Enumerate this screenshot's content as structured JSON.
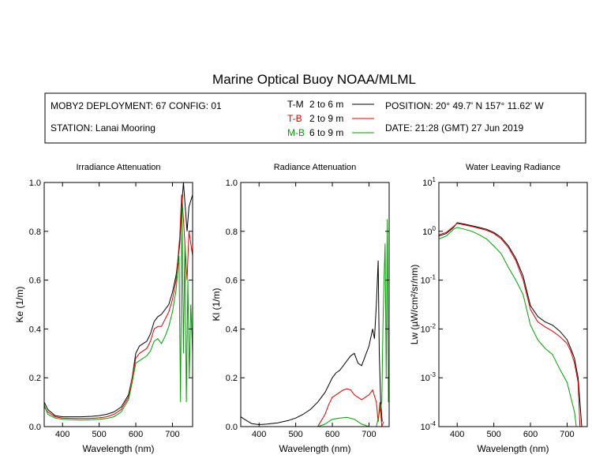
{
  "title": "Marine Optical Buoy NOAA/MLML",
  "info": {
    "deployment": "MOBY2 DEPLOYMENT: 67 CONFIG: 01",
    "station": "STATION: Lanai Mooring",
    "position": "POSITION: 20° 49.7' N   157° 11.62' W",
    "date": "DATE: 21:28 (GMT) 27 Jun 2019"
  },
  "legend": [
    {
      "code": "T-M",
      "range": "2 to 6  m",
      "color": "#000000"
    },
    {
      "code": "T-B",
      "range": "2 to 9  m",
      "color": "#dd0000"
    },
    {
      "code": "M-B",
      "range": "6 to 9  m",
      "color": "#00a000"
    }
  ],
  "chart_data": [
    {
      "type": "line",
      "title": "Irradiance Attenuation",
      "xlabel": "Wavelength (nm)",
      "ylabel": "Ke  (1/m)",
      "xlim": [
        350,
        755
      ],
      "ylim": [
        0,
        1.0
      ],
      "xticks": [
        "400",
        "500",
        "600",
        "700"
      ],
      "yticks": [
        "0.0",
        "0.2",
        "0.4",
        "0.6",
        "0.8",
        "1.0"
      ],
      "log": false,
      "series": [
        {
          "code": "T-M",
          "color": "#000000",
          "points": [
            [
              350,
              0.1
            ],
            [
              360,
              0.07
            ],
            [
              380,
              0.045
            ],
            [
              400,
              0.04
            ],
            [
              420,
              0.04
            ],
            [
              450,
              0.04
            ],
            [
              480,
              0.042
            ],
            [
              500,
              0.045
            ],
            [
              520,
              0.05
            ],
            [
              540,
              0.06
            ],
            [
              560,
              0.08
            ],
            [
              580,
              0.13
            ],
            [
              590,
              0.2
            ],
            [
              600,
              0.3
            ],
            [
              610,
              0.33
            ],
            [
              620,
              0.34
            ],
            [
              630,
              0.35
            ],
            [
              640,
              0.38
            ],
            [
              650,
              0.43
            ],
            [
              660,
              0.45
            ],
            [
              670,
              0.46
            ],
            [
              680,
              0.48
            ],
            [
              690,
              0.5
            ],
            [
              700,
              0.55
            ],
            [
              710,
              0.62
            ],
            [
              720,
              0.75
            ],
            [
              725,
              0.9
            ],
            [
              730,
              1.0
            ],
            [
              740,
              0.8
            ],
            [
              745,
              0.9
            ],
            [
              755,
              0.95
            ]
          ]
        },
        {
          "code": "T-B",
          "color": "#dd0000",
          "points": [
            [
              350,
              0.08
            ],
            [
              360,
              0.06
            ],
            [
              380,
              0.04
            ],
            [
              400,
              0.035
            ],
            [
              420,
              0.034
            ],
            [
              450,
              0.033
            ],
            [
              480,
              0.034
            ],
            [
              500,
              0.036
            ],
            [
              520,
              0.04
            ],
            [
              540,
              0.05
            ],
            [
              560,
              0.07
            ],
            [
              580,
              0.12
            ],
            [
              590,
              0.2
            ],
            [
              600,
              0.28
            ],
            [
              610,
              0.3
            ],
            [
              620,
              0.31
            ],
            [
              630,
              0.32
            ],
            [
              640,
              0.35
            ],
            [
              650,
              0.4
            ],
            [
              660,
              0.41
            ],
            [
              670,
              0.41
            ],
            [
              680,
              0.44
            ],
            [
              690,
              0.47
            ],
            [
              700,
              0.52
            ],
            [
              710,
              0.6
            ],
            [
              720,
              0.78
            ],
            [
              725,
              0.95
            ],
            [
              730,
              0.85
            ],
            [
              740,
              0.6
            ],
            [
              745,
              0.8
            ],
            [
              755,
              0.7
            ]
          ]
        },
        {
          "code": "M-B",
          "color": "#00a000",
          "points": [
            [
              350,
              0.09
            ],
            [
              360,
              0.05
            ],
            [
              380,
              0.035
            ],
            [
              400,
              0.03
            ],
            [
              420,
              0.028
            ],
            [
              450,
              0.027
            ],
            [
              480,
              0.028
            ],
            [
              500,
              0.03
            ],
            [
              520,
              0.033
            ],
            [
              540,
              0.04
            ],
            [
              560,
              0.06
            ],
            [
              580,
              0.11
            ],
            [
              590,
              0.18
            ],
            [
              600,
              0.26
            ],
            [
              610,
              0.27
            ],
            [
              620,
              0.28
            ],
            [
              630,
              0.29
            ],
            [
              640,
              0.31
            ],
            [
              650,
              0.35
            ],
            [
              660,
              0.36
            ],
            [
              670,
              0.34
            ],
            [
              680,
              0.37
            ],
            [
              690,
              0.41
            ],
            [
              700,
              0.47
            ],
            [
              710,
              0.56
            ],
            [
              718,
              0.7
            ],
            [
              722,
              0.1
            ],
            [
              726,
              0.9
            ],
            [
              730,
              0.3
            ],
            [
              734,
              0.75
            ],
            [
              738,
              0.1
            ],
            [
              742,
              0.6
            ],
            [
              746,
              0.2
            ],
            [
              750,
              0.5
            ],
            [
              755,
              0.3
            ]
          ]
        }
      ]
    },
    {
      "type": "line",
      "title": "Radiance Attenuation",
      "xlabel": "Wavelength (nm)",
      "ylabel": "Kl  (1/m)",
      "xlim": [
        350,
        755
      ],
      "ylim": [
        0,
        1.0
      ],
      "xticks": [
        "400",
        "500",
        "600",
        "700"
      ],
      "yticks": [
        "0.0",
        "0.2",
        "0.4",
        "0.6",
        "0.8",
        "1.0"
      ],
      "log": false,
      "series": [
        {
          "code": "T-M",
          "color": "#000000",
          "points": [
            [
              350,
              0.04
            ],
            [
              360,
              0.03
            ],
            [
              380,
              0.012
            ],
            [
              400,
              0.008
            ],
            [
              420,
              0.01
            ],
            [
              450,
              0.015
            ],
            [
              480,
              0.025
            ],
            [
              500,
              0.035
            ],
            [
              520,
              0.05
            ],
            [
              540,
              0.07
            ],
            [
              560,
              0.1
            ],
            [
              580,
              0.14
            ],
            [
              590,
              0.17
            ],
            [
              600,
              0.2
            ],
            [
              610,
              0.22
            ],
            [
              620,
              0.23
            ],
            [
              630,
              0.25
            ],
            [
              640,
              0.27
            ],
            [
              650,
              0.29
            ],
            [
              660,
              0.3
            ],
            [
              670,
              0.26
            ],
            [
              680,
              0.25
            ],
            [
              690,
              0.29
            ],
            [
              700,
              0.33
            ],
            [
              710,
              0.4
            ],
            [
              715,
              0.36
            ],
            [
              720,
              0.5
            ],
            [
              725,
              0.68
            ],
            [
              728,
              0.3
            ],
            [
              732,
              0.1
            ],
            [
              736,
              0.02
            ]
          ]
        },
        {
          "code": "T-B",
          "color": "#dd0000",
          "points": [
            [
              560,
              0.0
            ],
            [
              580,
              0.05
            ],
            [
              590,
              0.09
            ],
            [
              600,
              0.12
            ],
            [
              610,
              0.13
            ],
            [
              620,
              0.14
            ],
            [
              630,
              0.15
            ],
            [
              640,
              0.155
            ],
            [
              650,
              0.15
            ],
            [
              660,
              0.13
            ],
            [
              670,
              0.12
            ],
            [
              680,
              0.11
            ],
            [
              690,
              0.12
            ],
            [
              700,
              0.13
            ],
            [
              710,
              0.15
            ],
            [
              720,
              0.1
            ],
            [
              725,
              0.02
            ],
            [
              730,
              0.1
            ],
            [
              735,
              0.0
            ],
            [
              740,
              0.02
            ]
          ]
        },
        {
          "code": "M-B",
          "color": "#00a000",
          "points": [
            [
              560,
              0.0
            ],
            [
              580,
              0.01
            ],
            [
              600,
              0.03
            ],
            [
              620,
              0.035
            ],
            [
              640,
              0.038
            ],
            [
              660,
              0.03
            ],
            [
              680,
              0.01
            ],
            [
              700,
              0.0
            ],
            [
              720,
              0.0
            ],
            [
              735,
              0.1
            ],
            [
              738,
              0.4
            ],
            [
              741,
              0.6
            ],
            [
              744,
              0.75
            ],
            [
              747,
              0.2
            ],
            [
              750,
              0.85
            ],
            [
              753,
              0.1
            ]
          ]
        }
      ]
    },
    {
      "type": "line",
      "title": "Water Leaving Radiance",
      "xlabel": "Wavelength (nm)",
      "ylabel": "Lw  (µW/cm²/sr/nm)",
      "xlim": [
        350,
        755
      ],
      "ylim": [
        0.0001,
        10
      ],
      "xticks": [
        "400",
        "500",
        "600",
        "700"
      ],
      "yticks": [
        "10^-4",
        "10^-3",
        "10^-2",
        "10^-1",
        "10^0",
        "10^1"
      ],
      "log": true,
      "series": [
        {
          "code": "T-M",
          "color": "#000000",
          "points": [
            [
              350,
              0.8
            ],
            [
              370,
              0.9
            ],
            [
              390,
              1.2
            ],
            [
              400,
              1.5
            ],
            [
              420,
              1.4
            ],
            [
              440,
              1.3
            ],
            [
              460,
              1.2
            ],
            [
              480,
              1.1
            ],
            [
              500,
              0.95
            ],
            [
              520,
              0.75
            ],
            [
              540,
              0.5
            ],
            [
              560,
              0.28
            ],
            [
              580,
              0.12
            ],
            [
              600,
              0.03
            ],
            [
              620,
              0.018
            ],
            [
              640,
              0.014
            ],
            [
              660,
              0.012
            ],
            [
              680,
              0.009
            ],
            [
              700,
              0.006
            ],
            [
              710,
              0.004
            ],
            [
              720,
              0.0025
            ],
            [
              730,
              0.001
            ],
            [
              740,
              0.0001
            ]
          ]
        },
        {
          "code": "T-B",
          "color": "#dd0000",
          "points": [
            [
              350,
              0.85
            ],
            [
              370,
              0.95
            ],
            [
              390,
              1.25
            ],
            [
              400,
              1.45
            ],
            [
              420,
              1.35
            ],
            [
              440,
              1.25
            ],
            [
              460,
              1.15
            ],
            [
              480,
              1.05
            ],
            [
              500,
              0.9
            ],
            [
              520,
              0.7
            ],
            [
              540,
              0.46
            ],
            [
              560,
              0.25
            ],
            [
              580,
              0.1
            ],
            [
              600,
              0.025
            ],
            [
              620,
              0.014
            ],
            [
              640,
              0.011
            ],
            [
              660,
              0.009
            ],
            [
              680,
              0.007
            ],
            [
              700,
              0.005
            ],
            [
              710,
              0.0035
            ],
            [
              720,
              0.002
            ],
            [
              730,
              0.0008
            ],
            [
              735,
              0.0001
            ]
          ]
        },
        {
          "code": "M-B",
          "color": "#00a000",
          "points": [
            [
              350,
              0.7
            ],
            [
              370,
              0.8
            ],
            [
              390,
              1.1
            ],
            [
              400,
              1.2
            ],
            [
              420,
              1.1
            ],
            [
              440,
              1.0
            ],
            [
              460,
              0.85
            ],
            [
              480,
              0.7
            ],
            [
              500,
              0.5
            ],
            [
              520,
              0.35
            ],
            [
              540,
              0.18
            ],
            [
              560,
              0.1
            ],
            [
              580,
              0.05
            ],
            [
              600,
              0.012
            ],
            [
              620,
              0.006
            ],
            [
              640,
              0.004
            ],
            [
              660,
              0.003
            ],
            [
              680,
              0.0015
            ],
            [
              700,
              0.0008
            ],
            [
              710,
              0.0004
            ],
            [
              720,
              0.0002
            ],
            [
              725,
              0.0001
            ]
          ]
        }
      ]
    }
  ]
}
